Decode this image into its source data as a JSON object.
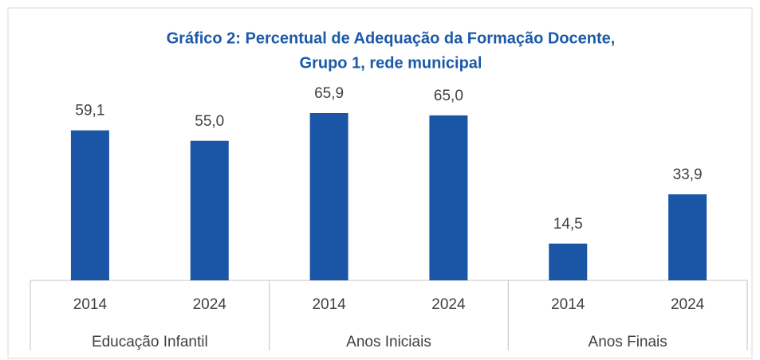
{
  "chart_data": {
    "type": "bar",
    "title": [
      "Gráfico 2: Percentual de Adequação da Formação Docente,",
      "Grupo 1, rede municipal"
    ],
    "categories": [
      "2014",
      "2024",
      "2014",
      "2024",
      "2014",
      "2024"
    ],
    "groups": [
      "Educação Infantil",
      "Anos Iniciais",
      "Anos Finais"
    ],
    "values": [
      59.1,
      55.0,
      65.9,
      65.0,
      14.5,
      33.9
    ],
    "value_labels": [
      "59,1",
      "55,0",
      "65,9",
      "65,0",
      "14,5",
      "33,9"
    ],
    "color": "#1a55a6"
  }
}
